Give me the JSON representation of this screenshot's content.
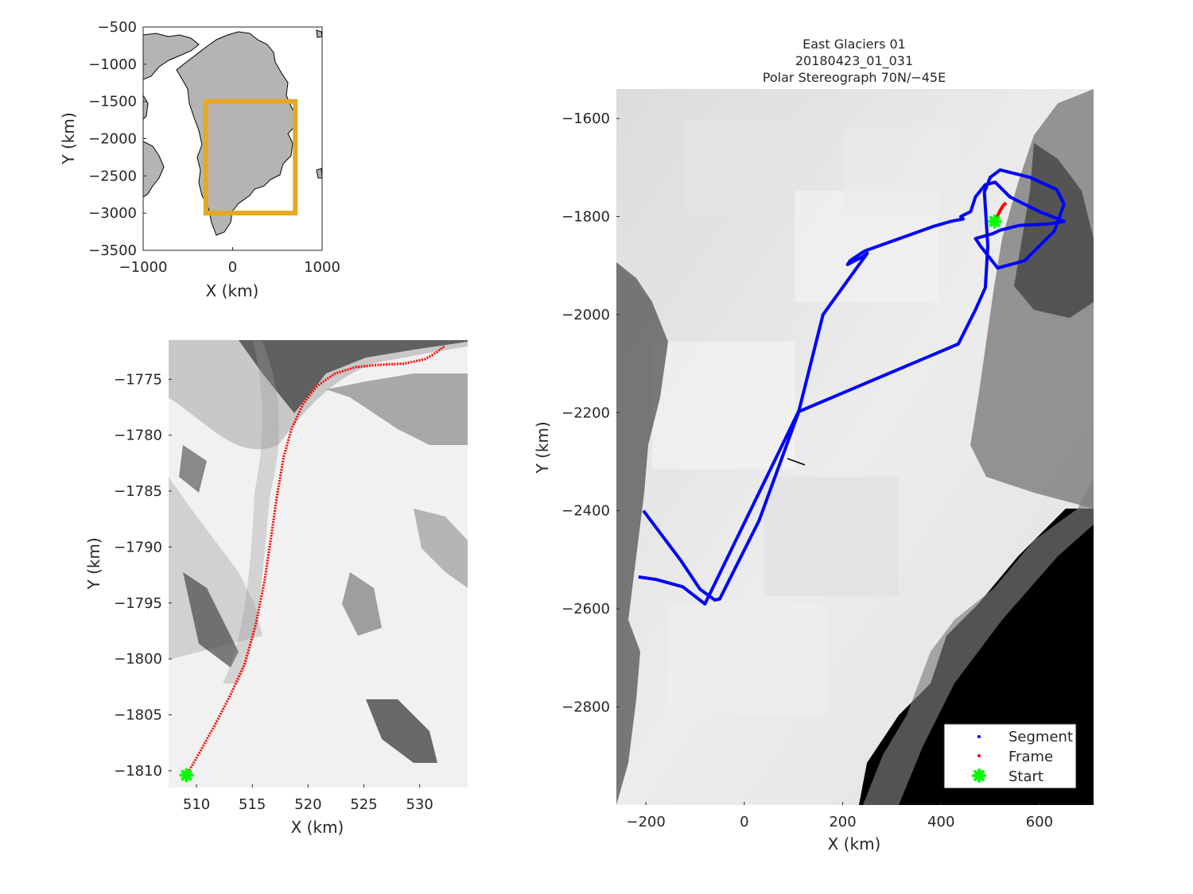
{
  "overview_map": {
    "xlabel": "X (km)",
    "ylabel": "Y (km)",
    "xticks": [
      "−1000",
      "0",
      "1000"
    ],
    "yticks": [
      "−500",
      "−1000",
      "−1500",
      "−2000",
      "−2500",
      "−3000",
      "−3500"
    ],
    "xlim": [
      -1000,
      1000
    ],
    "ylim": [
      -3500,
      -500
    ],
    "region_box_color": "#e6a823",
    "land_color": "#b4b4b4",
    "region_box": {
      "x": [
        -300,
        700
      ],
      "y": [
        -3000,
        -1500
      ]
    }
  },
  "frame_map": {
    "xlabel": "X (km)",
    "ylabel": "Y (km)",
    "xticks": [
      "510",
      "515",
      "520",
      "525",
      "530"
    ],
    "yticks": [
      "−1775",
      "−1780",
      "−1785",
      "−1790",
      "−1795",
      "−1800",
      "−1805",
      "−1810"
    ],
    "xlim": [
      507.5,
      534.3
    ],
    "ylim": [
      -1811.5,
      -1771.5
    ],
    "frame_color": "#ff0000",
    "start_color": "#00ff00",
    "frame_path": {
      "x": [
        509.1,
        510.2,
        511.6,
        513.0,
        514.3,
        515.3,
        516.1,
        516.7,
        517.2,
        517.8,
        518.5,
        519.5,
        520.8,
        522.4,
        524.3,
        526.5,
        528.6,
        530.5,
        531.5,
        532.3
      ],
      "y": [
        -1810.4,
        -1808.5,
        -1806.0,
        -1803.3,
        -1800.5,
        -1797.0,
        -1793.0,
        -1789.0,
        -1785.5,
        -1782.0,
        -1779.5,
        -1777.3,
        -1775.6,
        -1774.5,
        -1773.9,
        -1773.7,
        -1773.6,
        -1773.2,
        -1772.6,
        -1772.0
      ]
    },
    "start_point": {
      "x": 509.1,
      "y": -1810.4
    }
  },
  "main_map": {
    "title_lines": [
      "East Glaciers 01",
      "20180423_01_031",
      "Polar Stereograph 70N/−45E"
    ],
    "xlabel": "X (km)",
    "ylabel": "Y (km)",
    "xticks": [
      "−200",
      "0",
      "200",
      "400",
      "600"
    ],
    "yticks": [
      "−1600",
      "−1800",
      "−2000",
      "−2200",
      "−2400",
      "−2600",
      "−2800"
    ],
    "xlim": [
      -260,
      710
    ],
    "ylim": [
      -3000,
      -1540
    ],
    "segment_color": "#0000ff",
    "frame_color": "#ff0000",
    "start_color": "#00ff00",
    "legend": {
      "items": [
        {
          "label": "Segment"
        },
        {
          "label": "Frame"
        },
        {
          "label": "Start"
        }
      ]
    },
    "segment_path": {
      "x": [
        -215,
        -180,
        -125,
        -80,
        110,
        435,
        470,
        490,
        495,
        488,
        500,
        520,
        580,
        635,
        650,
        630,
        570,
        515,
        480,
        470,
        505,
        520,
        560,
        620,
        650,
        600,
        540,
        510,
        490,
        470,
        460,
        440,
        445,
        420,
        385,
        245,
        230,
        215,
        210,
        240,
        250,
        160,
        110,
        30,
        -50,
        -60,
        -90,
        -130,
        -205
      ],
      "y": [
        -2535,
        -2540,
        -2555,
        -2590,
        -2198,
        -2060,
        -1990,
        -1945,
        -1860,
        -1750,
        -1720,
        -1705,
        -1720,
        -1745,
        -1775,
        -1830,
        -1890,
        -1905,
        -1860,
        -1845,
        -1835,
        -1828,
        -1818,
        -1815,
        -1810,
        -1790,
        -1760,
        -1730,
        -1735,
        -1760,
        -1790,
        -1800,
        -1805,
        -1810,
        -1820,
        -1870,
        -1880,
        -1890,
        -1898,
        -1882,
        -1875,
        -2000,
        -2200,
        -2420,
        -2580,
        -2582,
        -2560,
        -2500,
        -2400
      ]
    },
    "frame_path": {
      "x": [
        509,
        512,
        515,
        520,
        526,
        532
      ],
      "y": [
        -1810,
        -1805,
        -1798,
        -1788,
        -1778,
        -1772
      ]
    },
    "start_point": {
      "x": 509,
      "y": -1810
    }
  }
}
